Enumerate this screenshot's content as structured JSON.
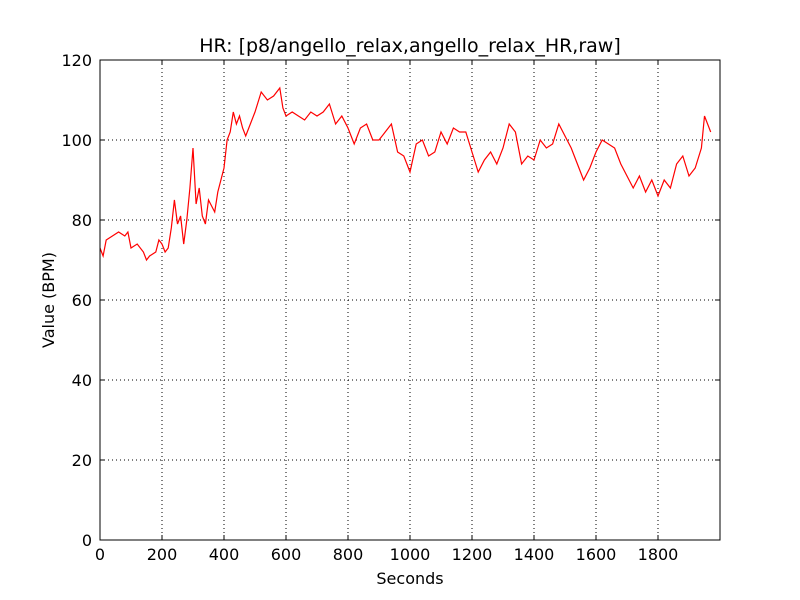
{
  "chart_data": {
    "type": "line",
    "title": "HR: [p8/angello_relax,angello_relax_HR,raw]",
    "x_label": "Seconds",
    "y_label": "Value (BPM)",
    "xlim": [
      0,
      2000
    ],
    "ylim": [
      0,
      120
    ],
    "xticks": [
      0,
      200,
      400,
      600,
      800,
      1000,
      1200,
      1400,
      1600,
      1800
    ],
    "yticks": [
      0,
      20,
      40,
      60,
      80,
      100,
      120
    ],
    "grid": true,
    "series": [
      {
        "color": "#ff0000",
        "x": [
          0,
          10,
          20,
          40,
          60,
          80,
          90,
          100,
          120,
          140,
          150,
          160,
          180,
          190,
          200,
          210,
          220,
          230,
          240,
          250,
          260,
          270,
          280,
          290,
          300,
          310,
          320,
          330,
          340,
          350,
          370,
          380,
          400,
          410,
          420,
          430,
          440,
          450,
          460,
          470,
          480,
          500,
          520,
          540,
          560,
          580,
          590,
          600,
          620,
          640,
          660,
          680,
          700,
          720,
          740,
          760,
          780,
          800,
          820,
          840,
          860,
          880,
          900,
          920,
          940,
          960,
          980,
          1000,
          1020,
          1040,
          1060,
          1080,
          1100,
          1120,
          1140,
          1160,
          1180,
          1200,
          1220,
          1240,
          1260,
          1280,
          1300,
          1320,
          1340,
          1360,
          1380,
          1400,
          1420,
          1440,
          1460,
          1480,
          1500,
          1520,
          1540,
          1560,
          1580,
          1600,
          1620,
          1640,
          1660,
          1680,
          1700,
          1720,
          1740,
          1760,
          1780,
          1800,
          1820,
          1840,
          1860,
          1880,
          1900,
          1920,
          1940,
          1950,
          1960,
          1970
        ],
        "values": [
          73,
          71,
          75,
          76,
          77,
          76,
          77,
          73,
          74,
          72,
          70,
          71,
          72,
          75,
          74,
          72,
          73,
          78,
          85,
          79,
          81,
          74,
          80,
          88,
          98,
          84,
          88,
          81,
          79,
          85,
          82,
          87,
          93,
          100,
          102,
          107,
          104,
          106,
          103,
          101,
          103,
          107,
          112,
          110,
          111,
          113,
          108,
          106,
          107,
          106,
          105,
          107,
          106,
          107,
          109,
          104,
          106,
          103,
          99,
          103,
          104,
          100,
          100,
          102,
          104,
          97,
          96,
          92,
          99,
          100,
          96,
          97,
          102,
          99,
          103,
          102,
          102,
          97,
          92,
          95,
          97,
          94,
          98,
          104,
          102,
          94,
          96,
          95,
          100,
          98,
          99,
          104,
          101,
          98,
          94,
          90,
          93,
          97,
          100,
          99,
          98,
          94,
          91,
          88,
          91,
          87,
          90,
          86,
          90,
          88,
          94,
          96,
          91,
          93,
          98,
          106,
          104,
          102
        ]
      }
    ]
  }
}
